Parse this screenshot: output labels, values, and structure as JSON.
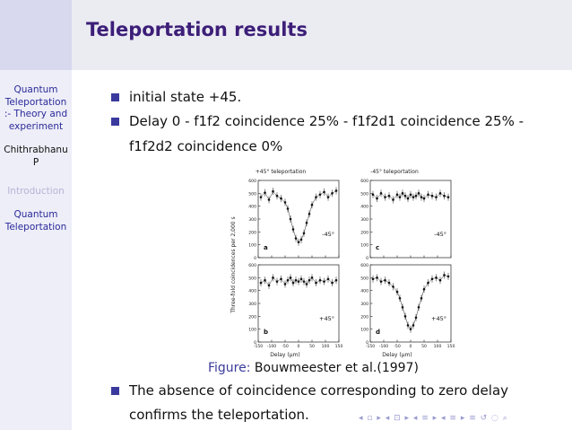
{
  "sidebar": {
    "title_lines": [
      "Quantum",
      "Teleportation",
      ":- Theory and",
      "experiment"
    ],
    "author_lines": [
      "Chithrabhanu",
      "P"
    ],
    "sections": [
      "Introduction",
      "Quantum",
      "Teleportation"
    ]
  },
  "header": {
    "title": "Teleportation results"
  },
  "bullets": {
    "b1": "initial state +45.",
    "b2_line1": "Delay 0 - f1f2 coincidence 25% - f1f2d1 coincidence 25% -",
    "b2_line2": "f1f2d2 coincidence 0%",
    "b3_line1": "The absence of coincidence corresponding to zero delay",
    "b3_line2": "confirms the teleportation."
  },
  "caption": {
    "label": "Figure:",
    "text": "Bouwmeester et al.(1997)"
  },
  "figure": {
    "left_header": "+45° teleportation",
    "right_header": "-45° teleportation",
    "ylabel": "Three-fold coincidences per 2,000 s",
    "xlabel": "Delay (μm)",
    "yticks": [
      "600",
      "500",
      "400",
      "300",
      "200",
      "100",
      "0"
    ],
    "xticks": [
      "-150",
      "-100",
      "-50",
      "0",
      "50",
      "100",
      "150"
    ],
    "panels": {
      "a": {
        "letter": "a",
        "polarizer": "-45°"
      },
      "b": {
        "letter": "b",
        "polarizer": "+45°"
      },
      "c": {
        "letter": "c",
        "polarizer": "-45°"
      },
      "d": {
        "letter": "d",
        "polarizer": "+45°"
      }
    }
  },
  "nav_symbols": "◂ ▫ ▸ ◂ ⊡ ▸ ◂ ≡ ▸ ◂ ≡ ▸   ≡   ↺ ◌ ⌕",
  "chart_data": [
    {
      "type": "scatter",
      "panel": "a",
      "title": "+45° teleportation",
      "annotation": "-45°",
      "xlabel": "Delay (μm)",
      "ylabel": "Three-fold coincidences per 2,000 s",
      "xlim": [
        -150,
        150
      ],
      "ylim": [
        0,
        600
      ],
      "x": [
        -140,
        -125,
        -110,
        -95,
        -80,
        -65,
        -50,
        -40,
        -30,
        -20,
        -10,
        0,
        10,
        20,
        30,
        40,
        50,
        65,
        80,
        95,
        110,
        125,
        140
      ],
      "y": [
        470,
        505,
        450,
        515,
        480,
        460,
        430,
        380,
        300,
        220,
        150,
        120,
        140,
        190,
        270,
        340,
        410,
        470,
        490,
        510,
        470,
        500,
        520
      ]
    },
    {
      "type": "scatter",
      "panel": "b",
      "annotation": "+45°",
      "xlabel": "Delay (μm)",
      "ylabel": "Three-fold coincidences per 2,000 s",
      "xlim": [
        -150,
        150
      ],
      "ylim": [
        0,
        600
      ],
      "x": [
        -140,
        -125,
        -110,
        -95,
        -80,
        -65,
        -50,
        -40,
        -30,
        -20,
        -10,
        0,
        10,
        20,
        30,
        40,
        50,
        65,
        80,
        95,
        110,
        125,
        140
      ],
      "y": [
        460,
        480,
        440,
        500,
        470,
        490,
        450,
        480,
        500,
        460,
        480,
        470,
        490,
        470,
        450,
        480,
        500,
        460,
        480,
        470,
        490,
        460,
        480
      ]
    },
    {
      "type": "scatter",
      "panel": "c",
      "title": "-45° teleportation",
      "annotation": "-45°",
      "xlabel": "Delay (μm)",
      "ylabel": "Three-fold coincidences per 2,000 s",
      "xlim": [
        -150,
        150
      ],
      "ylim": [
        0,
        600
      ],
      "x": [
        -140,
        -125,
        -110,
        -95,
        -80,
        -65,
        -50,
        -40,
        -30,
        -20,
        -10,
        0,
        10,
        20,
        30,
        40,
        50,
        65,
        80,
        95,
        110,
        125,
        140
      ],
      "y": [
        490,
        460,
        500,
        470,
        480,
        450,
        490,
        470,
        500,
        480,
        460,
        490,
        470,
        480,
        500,
        470,
        460,
        490,
        480,
        470,
        500,
        480,
        470
      ]
    },
    {
      "type": "scatter",
      "panel": "d",
      "annotation": "+45°",
      "xlabel": "Delay (μm)",
      "ylabel": "Three-fold coincidences per 2,000 s",
      "xlim": [
        -150,
        150
      ],
      "ylim": [
        0,
        600
      ],
      "x": [
        -140,
        -125,
        -110,
        -95,
        -80,
        -65,
        -50,
        -40,
        -30,
        -20,
        -10,
        0,
        10,
        20,
        30,
        40,
        50,
        65,
        80,
        95,
        110,
        125,
        140
      ],
      "y": [
        490,
        500,
        470,
        480,
        460,
        430,
        390,
        340,
        270,
        200,
        130,
        100,
        130,
        190,
        270,
        340,
        410,
        460,
        490,
        500,
        480,
        520,
        510
      ]
    }
  ]
}
